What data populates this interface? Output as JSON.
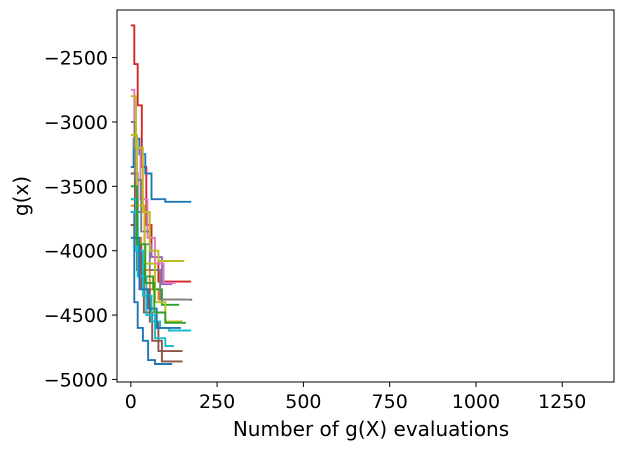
{
  "chart_data": {
    "type": "line",
    "title": "",
    "xlabel": "Number of g(X) evaluations",
    "ylabel": "g(x)",
    "xlim": [
      -40,
      1400
    ],
    "ylim": [
      -5020,
      -2130
    ],
    "xticks": [
      0,
      250,
      500,
      750,
      1000,
      1250
    ],
    "yticks": [
      -5000,
      -4500,
      -4000,
      -3500,
      -3000,
      -2500
    ],
    "xtick_labels": [
      "0",
      "250",
      "500",
      "750",
      "1000",
      "1250"
    ],
    "ytick_labels": [
      "−5000",
      "−4500",
      "−4000",
      "−3500",
      "−3000",
      "−2500"
    ],
    "grid": false,
    "legend": "none",
    "series": [
      {
        "color": "#d62728",
        "points": [
          [
            0,
            -2250
          ],
          [
            10,
            -2250
          ],
          [
            10,
            -2550
          ],
          [
            20,
            -2550
          ],
          [
            20,
            -2870
          ],
          [
            32,
            -2870
          ],
          [
            32,
            -3350
          ],
          [
            45,
            -3350
          ],
          [
            45,
            -3800
          ],
          [
            60,
            -3800
          ],
          [
            60,
            -4050
          ],
          [
            80,
            -4050
          ],
          [
            80,
            -4240
          ],
          [
            175,
            -4240
          ]
        ]
      },
      {
        "color": "#1f77b4",
        "points": [
          [
            0,
            -3350
          ],
          [
            8,
            -3350
          ],
          [
            8,
            -3130
          ],
          [
            25,
            -3130
          ],
          [
            25,
            -3250
          ],
          [
            42,
            -3250
          ],
          [
            42,
            -3400
          ],
          [
            60,
            -3400
          ],
          [
            60,
            -3600
          ],
          [
            100,
            -3600
          ],
          [
            100,
            -3620
          ],
          [
            175,
            -3620
          ]
        ]
      },
      {
        "color": "#1f77b4",
        "points": [
          [
            0,
            -3700
          ],
          [
            10,
            -3700
          ],
          [
            10,
            -4400
          ],
          [
            20,
            -4400
          ],
          [
            20,
            -4600
          ],
          [
            35,
            -4600
          ],
          [
            35,
            -4700
          ],
          [
            50,
            -4700
          ],
          [
            50,
            -4850
          ],
          [
            70,
            -4850
          ],
          [
            70,
            -4880
          ],
          [
            120,
            -4880
          ]
        ]
      },
      {
        "color": "#ff7f0e",
        "points": [
          [
            0,
            -3650
          ],
          [
            15,
            -3650
          ],
          [
            15,
            -3900
          ],
          [
            30,
            -3900
          ],
          [
            30,
            -4150
          ],
          [
            55,
            -4150
          ],
          [
            55,
            -4300
          ],
          [
            80,
            -4300
          ],
          [
            80,
            -4380
          ],
          [
            150,
            -4380
          ]
        ]
      },
      {
        "color": "#2ca02c",
        "points": [
          [
            0,
            -3600
          ],
          [
            20,
            -3600
          ],
          [
            20,
            -4050
          ],
          [
            40,
            -4050
          ],
          [
            40,
            -4200
          ],
          [
            65,
            -4200
          ],
          [
            65,
            -4300
          ],
          [
            90,
            -4300
          ],
          [
            90,
            -4420
          ],
          [
            140,
            -4420
          ]
        ]
      },
      {
        "color": "#9467bd",
        "points": [
          [
            0,
            -3400
          ],
          [
            20,
            -3400
          ],
          [
            20,
            -3700
          ],
          [
            40,
            -3700
          ],
          [
            40,
            -3950
          ],
          [
            60,
            -3950
          ],
          [
            60,
            -4050
          ],
          [
            90,
            -4050
          ],
          [
            90,
            -4260
          ],
          [
            120,
            -4260
          ]
        ]
      },
      {
        "color": "#8c564b",
        "points": [
          [
            0,
            -3400
          ],
          [
            12,
            -3400
          ],
          [
            12,
            -3950
          ],
          [
            30,
            -3950
          ],
          [
            30,
            -4300
          ],
          [
            55,
            -4300
          ],
          [
            55,
            -4550
          ],
          [
            80,
            -4550
          ],
          [
            80,
            -4780
          ],
          [
            150,
            -4780
          ]
        ]
      },
      {
        "color": "#8c564b",
        "points": [
          [
            0,
            -3800
          ],
          [
            18,
            -3800
          ],
          [
            18,
            -4150
          ],
          [
            38,
            -4150
          ],
          [
            38,
            -4480
          ],
          [
            62,
            -4480
          ],
          [
            62,
            -4700
          ],
          [
            90,
            -4700
          ],
          [
            90,
            -4860
          ],
          [
            150,
            -4860
          ]
        ]
      },
      {
        "color": "#e377c2",
        "points": [
          [
            0,
            -2750
          ],
          [
            10,
            -2750
          ],
          [
            10,
            -3200
          ],
          [
            28,
            -3200
          ],
          [
            28,
            -3600
          ],
          [
            48,
            -3600
          ],
          [
            48,
            -3900
          ],
          [
            70,
            -3900
          ],
          [
            70,
            -4100
          ],
          [
            95,
            -4100
          ],
          [
            95,
            -4250
          ],
          [
            130,
            -4250
          ]
        ]
      },
      {
        "color": "#7f7f7f",
        "points": [
          [
            0,
            -3000
          ],
          [
            12,
            -3000
          ],
          [
            12,
            -3450
          ],
          [
            30,
            -3450
          ],
          [
            30,
            -3850
          ],
          [
            55,
            -3850
          ],
          [
            55,
            -4150
          ],
          [
            85,
            -4150
          ],
          [
            85,
            -4380
          ],
          [
            175,
            -4380
          ],
          [
            175,
            -4390
          ]
        ]
      },
      {
        "color": "#bcbd22",
        "points": [
          [
            0,
            -2800
          ],
          [
            15,
            -2800
          ],
          [
            15,
            -3200
          ],
          [
            35,
            -3200
          ],
          [
            35,
            -3700
          ],
          [
            55,
            -3700
          ],
          [
            55,
            -4000
          ],
          [
            80,
            -4000
          ],
          [
            80,
            -4080
          ],
          [
            155,
            -4080
          ]
        ]
      },
      {
        "color": "#bcbd22",
        "points": [
          [
            0,
            -3100
          ],
          [
            18,
            -3100
          ],
          [
            18,
            -3650
          ],
          [
            40,
            -3650
          ],
          [
            40,
            -4100
          ],
          [
            70,
            -4100
          ],
          [
            70,
            -4400
          ],
          [
            100,
            -4400
          ],
          [
            100,
            -4550
          ],
          [
            150,
            -4550
          ]
        ]
      },
      {
        "color": "#17becf",
        "points": [
          [
            0,
            -3600
          ],
          [
            15,
            -3600
          ],
          [
            15,
            -4000
          ],
          [
            35,
            -4000
          ],
          [
            35,
            -4350
          ],
          [
            60,
            -4350
          ],
          [
            60,
            -4550
          ],
          [
            85,
            -4550
          ],
          [
            85,
            -4600
          ],
          [
            110,
            -4600
          ],
          [
            110,
            -4620
          ],
          [
            175,
            -4620
          ]
        ]
      },
      {
        "color": "#17becf",
        "points": [
          [
            0,
            -3700
          ],
          [
            20,
            -3700
          ],
          [
            20,
            -4200
          ],
          [
            45,
            -4200
          ],
          [
            45,
            -4500
          ],
          [
            70,
            -4500
          ],
          [
            70,
            -4680
          ],
          [
            100,
            -4680
          ],
          [
            100,
            -4740
          ],
          [
            125,
            -4740
          ]
        ]
      },
      {
        "color": "#1f77b4",
        "points": [
          [
            0,
            -3900
          ],
          [
            25,
            -3900
          ],
          [
            25,
            -4300
          ],
          [
            50,
            -4300
          ],
          [
            50,
            -4450
          ],
          [
            75,
            -4450
          ],
          [
            75,
            -4600
          ],
          [
            145,
            -4600
          ]
        ]
      },
      {
        "color": "#2ca02c",
        "points": [
          [
            0,
            -3500
          ],
          [
            18,
            -3500
          ],
          [
            18,
            -3950
          ],
          [
            42,
            -3950
          ],
          [
            42,
            -4250
          ],
          [
            68,
            -4250
          ],
          [
            68,
            -4480
          ],
          [
            100,
            -4480
          ],
          [
            100,
            -4560
          ],
          [
            160,
            -4560
          ]
        ]
      }
    ]
  }
}
